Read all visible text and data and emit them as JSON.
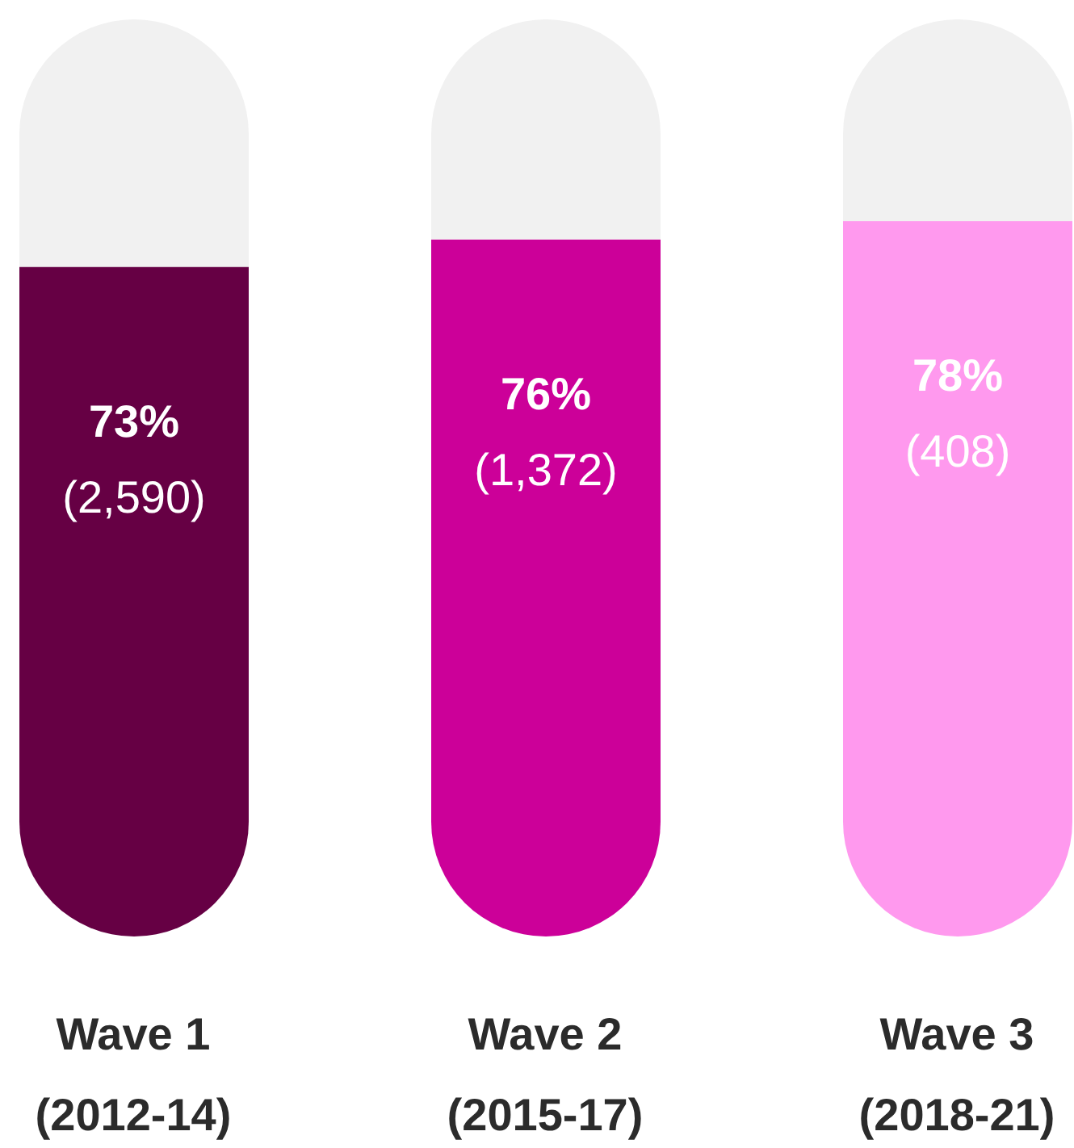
{
  "chart_data": {
    "type": "bar",
    "categories": [
      "Wave 1 (2012-14)",
      "Wave 2 (2015-17)",
      "Wave 3 (2018-21)"
    ],
    "values": [
      73,
      76,
      78
    ],
    "colors": [
      "#660044",
      "#cc0099",
      "#ff99ee"
    ],
    "value_labels": [
      "73%",
      "76%",
      "78%"
    ],
    "annotations": [
      "(2,590)",
      "(1,372)",
      "(408)"
    ],
    "ylim": [
      0,
      100
    ],
    "tick_labels": "x"
  }
}
